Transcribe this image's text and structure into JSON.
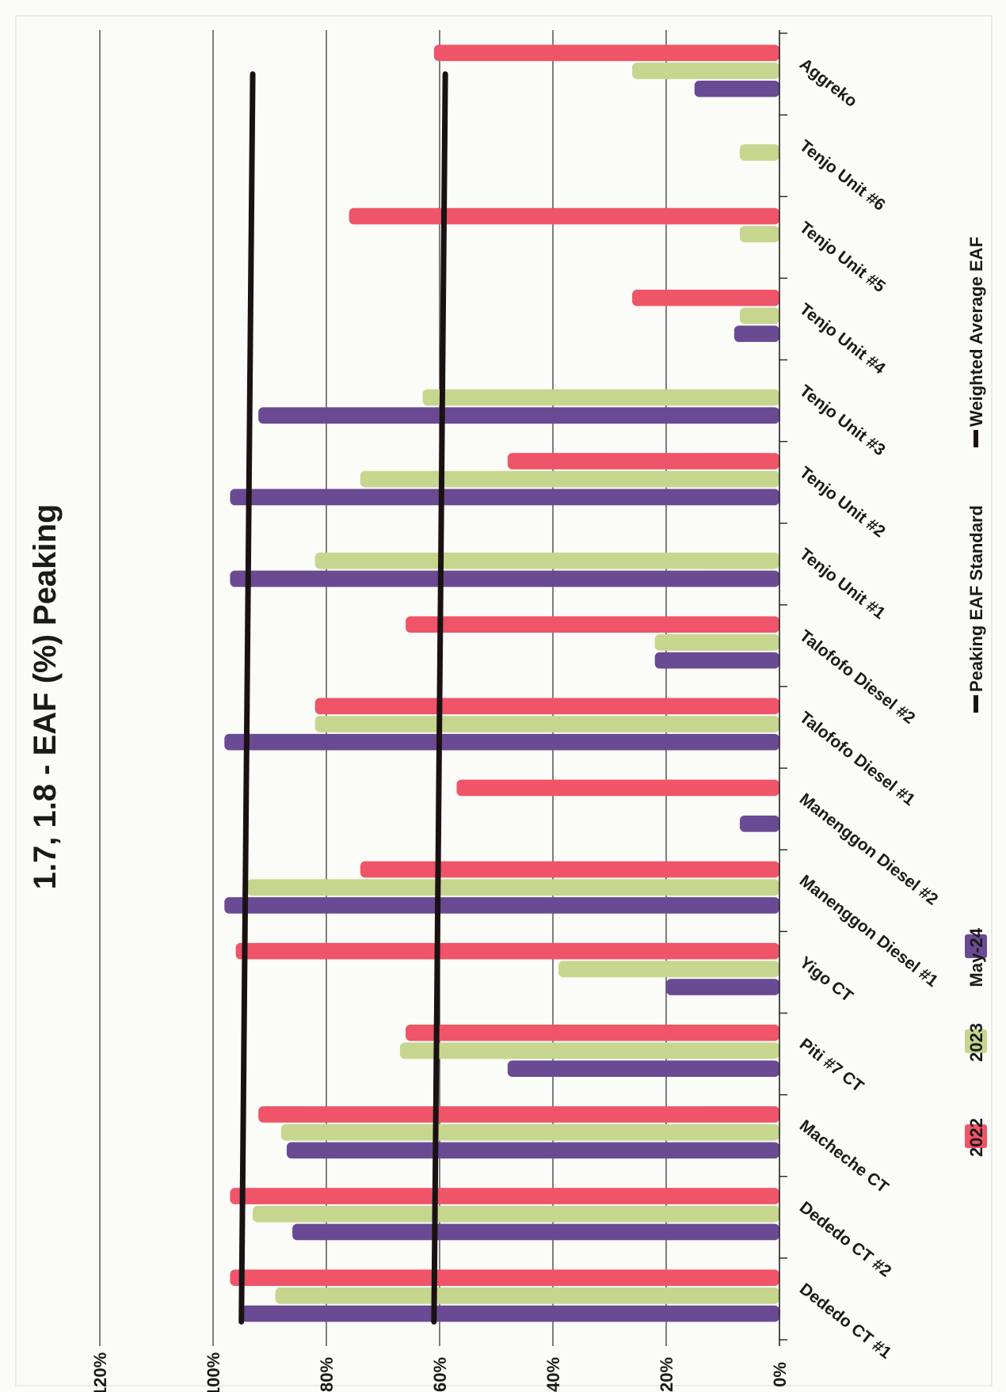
{
  "chart_data": {
    "type": "bar",
    "orientation": "horizontal",
    "title": "1.7, 1.8 - EAF (%) Peaking",
    "xlabel": "",
    "ylabel": "",
    "ylim": [
      0,
      120
    ],
    "ticks": [
      "0%",
      "20%",
      "40%",
      "60%",
      "80%",
      "100%",
      "120%"
    ],
    "tick_values": [
      0,
      20,
      40,
      60,
      80,
      100,
      120
    ],
    "grid": true,
    "legend_position": "bottom",
    "categories": [
      "Dededo CT #1",
      "Dededo CT #2",
      "Macheche CT",
      "Piti #7 CT",
      "Yigo CT",
      "Manenggon Diesel #1",
      "Manenggon Diesel #2",
      "Talofofo Diesel #1",
      "Talofofo Diesel #2",
      "Tenjo Unit #1",
      "Tenjo Unit #2",
      "Tenjo Unit #3",
      "Tenjo Unit #4",
      "Tenjo Unit #5",
      "Tenjo Unit #6",
      "Aggreko"
    ],
    "series": [
      {
        "name": "2022",
        "color": "#ef5468",
        "values": [
          97,
          97,
          92,
          66,
          96,
          74,
          57,
          82,
          66,
          0,
          48,
          0,
          26,
          76,
          0,
          61
        ]
      },
      {
        "name": "2023",
        "color": "#c6d68e",
        "values": [
          89,
          93,
          88,
          67,
          39,
          94,
          0,
          82,
          22,
          82,
          74,
          63,
          7,
          7,
          7,
          26
        ]
      },
      {
        "name": "May-24",
        "color": "#6a4a93",
        "values": [
          95,
          86,
          87,
          48,
          20,
          98,
          7,
          98,
          22,
          97,
          97,
          92,
          8,
          0,
          0,
          15
        ]
      }
    ],
    "lines": [
      {
        "name": "Peaking EAF Standard",
        "color": "#1a1212",
        "value_start": 95,
        "value_end": 93
      },
      {
        "name": "Weighted Average EAF",
        "color": "#1a1212",
        "value_start": 61,
        "value_end": 59
      }
    ]
  }
}
